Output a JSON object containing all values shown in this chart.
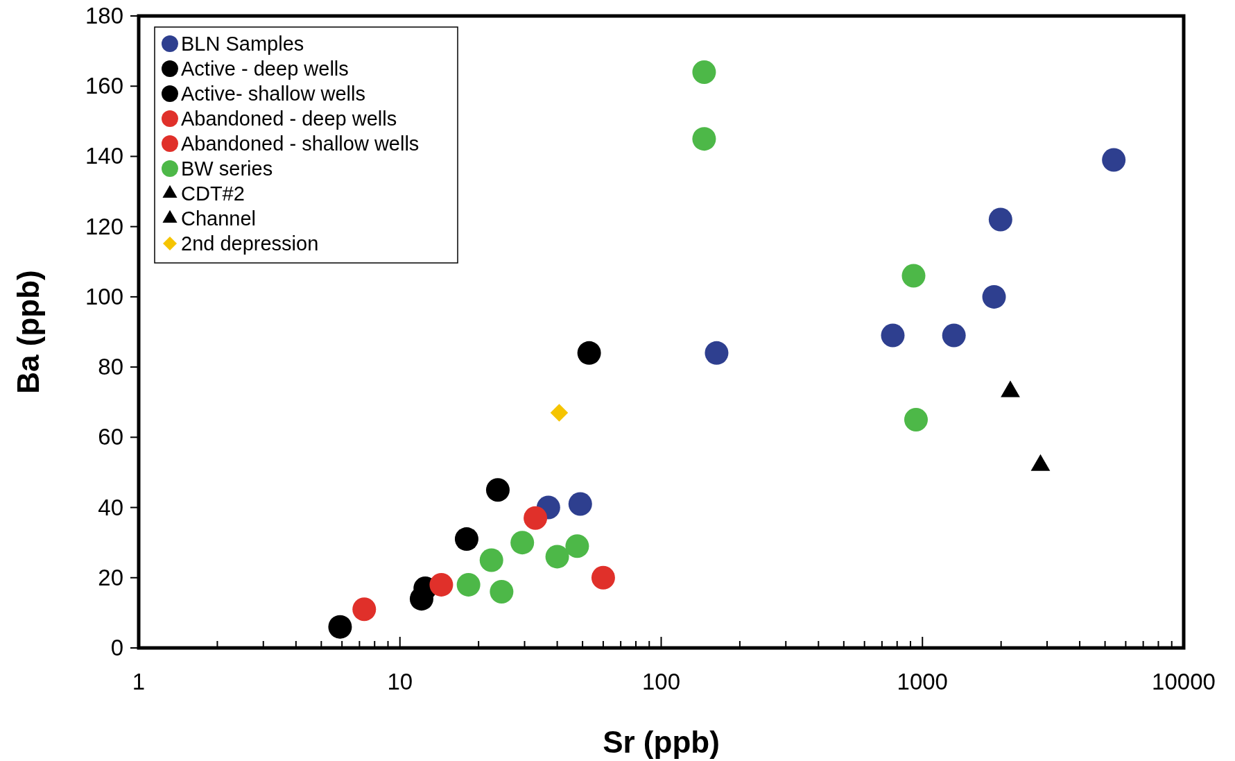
{
  "chart_data": {
    "type": "scatter",
    "xlabel": "Sr (ppb)",
    "ylabel": "Ba (ppb)",
    "log": "x",
    "xlim": [
      1,
      10000
    ],
    "ylim": [
      0,
      180
    ],
    "xticks": [
      1,
      {
        "value": 2,
        "label": null
      },
      {
        "value": 3,
        "label": null
      },
      {
        "value": 4,
        "label": null
      },
      {
        "value": 5,
        "label": null
      },
      {
        "value": 6,
        "label": null
      },
      {
        "value": 7,
        "label": null
      },
      {
        "value": 8,
        "label": null
      },
      {
        "value": 9,
        "label": null
      },
      10,
      {
        "value": 20,
        "label": null
      },
      {
        "value": 30,
        "label": null
      },
      {
        "value": 40,
        "label": null
      },
      {
        "value": 50,
        "label": null
      },
      {
        "value": 60,
        "label": null
      },
      {
        "value": 70,
        "label": null
      },
      {
        "value": 80,
        "label": null
      },
      {
        "value": 90,
        "label": null
      },
      100,
      {
        "value": 200,
        "label": null
      },
      {
        "value": 300,
        "label": null
      },
      {
        "value": 400,
        "label": null
      },
      {
        "value": 500,
        "label": null
      },
      {
        "value": 600,
        "label": null
      },
      {
        "value": 700,
        "label": null
      },
      {
        "value": 800,
        "label": null
      },
      {
        "value": 900,
        "label": null
      },
      1000,
      {
        "value": 2000,
        "label": null
      },
      {
        "value": 3000,
        "label": null
      },
      {
        "value": 4000,
        "label": null
      },
      {
        "value": 5000,
        "label": null
      },
      {
        "value": 6000,
        "label": null
      },
      {
        "value": 7000,
        "label": null
      },
      {
        "value": 8000,
        "label": null
      },
      {
        "value": 9000,
        "label": null
      },
      10000
    ],
    "yticks": [
      0,
      20,
      40,
      60,
      80,
      100,
      120,
      140,
      160,
      180
    ],
    "grid": false,
    "legend": "top left",
    "series": [
      {
        "name": "BLN Samples",
        "color": "#2e3f8f",
        "marker": "circle",
        "x": [
          163,
          37,
          49,
          770,
          1320,
          1880,
          1990,
          5400
        ],
        "values": [
          84,
          40,
          41,
          89,
          89,
          100,
          122,
          139
        ]
      },
      {
        "name": "Active - deep wells",
        "color": "#000000",
        "marker": "circle",
        "x": [
          12.1,
          18,
          23.7
        ],
        "values": [
          14,
          31,
          45
        ]
      },
      {
        "name": "Active- shallow wells",
        "color": "#000000",
        "marker": "circle",
        "x": [
          5.9,
          12.5,
          53
        ],
        "values": [
          6,
          17,
          84
        ]
      },
      {
        "name": "Abandoned - deep wells",
        "color": "#e0302a",
        "marker": "circle",
        "x": [
          7.3,
          14.4
        ],
        "values": [
          11,
          18
        ]
      },
      {
        "name": "Abandoned - shallow wells",
        "color": "#e0302a",
        "marker": "circle",
        "x": [
          33,
          60
        ],
        "values": [
          37,
          20
        ]
      },
      {
        "name": "BW series",
        "color": "#4db848",
        "marker": "circle",
        "x": [
          146,
          146,
          925,
          945,
          18.3,
          22.4,
          24.5,
          29.4,
          40,
          47.7
        ],
        "values": [
          164,
          145,
          106,
          65,
          18,
          25,
          16,
          30,
          26,
          29
        ]
      },
      {
        "name": "CDT#2",
        "color": "#000000",
        "marker": "triangle",
        "x": [
          2170
        ],
        "values": [
          73
        ]
      },
      {
        "name": "Channel",
        "color": "#000000",
        "marker": "triangle",
        "x": [
          2830
        ],
        "values": [
          52
        ]
      },
      {
        "name": "2nd depression",
        "color": "#f5c400",
        "marker": "diamond",
        "x": [
          40.7
        ],
        "values": [
          67
        ]
      }
    ]
  }
}
